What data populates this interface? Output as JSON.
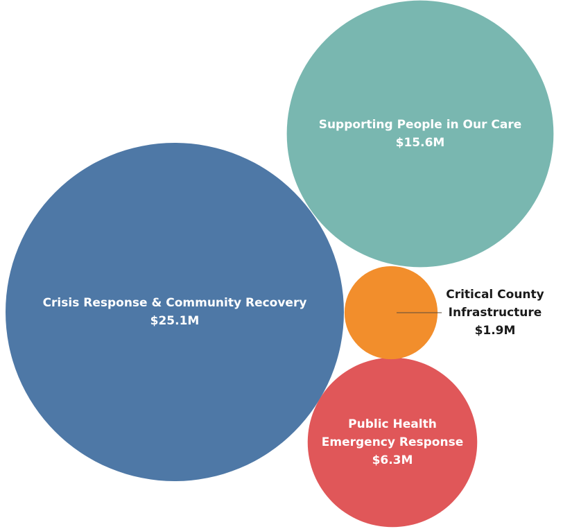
{
  "chart_data": {
    "type": "bubble",
    "unit": "$M",
    "items": [
      {
        "key": "crisis",
        "label_lines": [
          "Crisis Response & Community Recovery"
        ],
        "value": 25.1,
        "value_label": "$25.1M",
        "color": "#4e78a6",
        "label_inside": true
      },
      {
        "key": "supporting",
        "label_lines": [
          "Supporting People in Our Care"
        ],
        "value": 15.6,
        "value_label": "$15.6M",
        "color": "#79b7b0",
        "label_inside": true
      },
      {
        "key": "public-health",
        "label_lines": [
          "Public Health",
          "Emergency Response"
        ],
        "value": 6.3,
        "value_label": "$6.3M",
        "color": "#e05759",
        "label_inside": true
      },
      {
        "key": "critical-infra",
        "label_lines": [
          "Critical County",
          "Infrastructure"
        ],
        "value": 1.9,
        "value_label": "$1.9M",
        "color": "#f28e2c",
        "label_inside": false
      }
    ]
  }
}
